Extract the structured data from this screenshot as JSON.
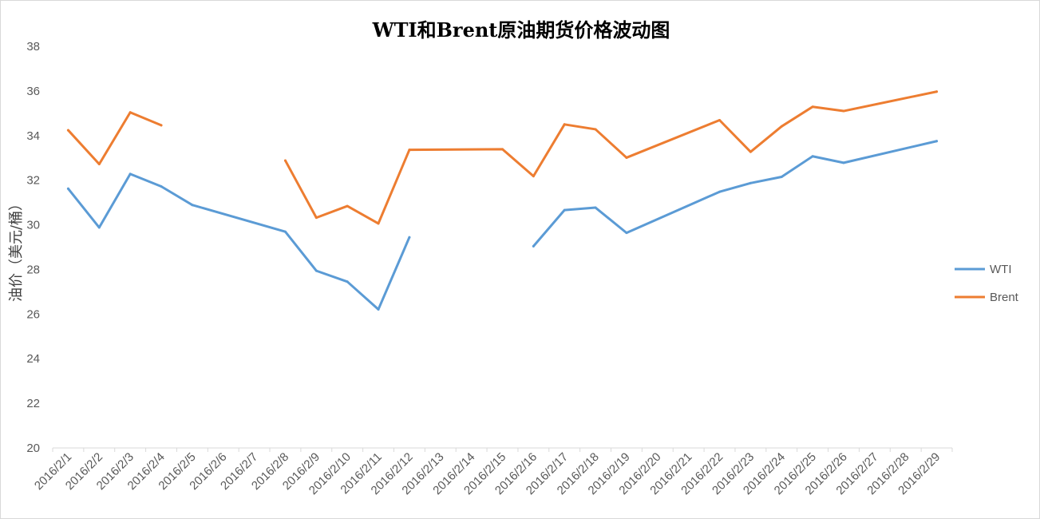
{
  "chart_data": {
    "type": "line",
    "title": "WTI和Brent原油期货价格波动图",
    "xlabel": "",
    "ylabel": "油价（美元/桶）",
    "ylim": [
      20,
      38
    ],
    "yticks": [
      20,
      22,
      24,
      26,
      28,
      30,
      32,
      34,
      36,
      38
    ],
    "grid": false,
    "legend": "right",
    "categories": [
      "2016/2/1",
      "2016/2/2",
      "2016/2/3",
      "2016/2/4",
      "2016/2/5",
      "2016/2/6",
      "2016/2/7",
      "2016/2/8",
      "2016/2/9",
      "2016/2/10",
      "2016/2/11",
      "2016/2/12",
      "2016/2/13",
      "2016/2/14",
      "2016/2/15",
      "2016/2/16",
      "2016/2/17",
      "2016/2/18",
      "2016/2/19",
      "2016/2/20",
      "2016/2/21",
      "2016/2/22",
      "2016/2/23",
      "2016/2/24",
      "2016/2/25",
      "2016/2/26",
      "2016/2/27",
      "2016/2/28",
      "2016/2/29"
    ],
    "series": [
      {
        "name": "WTI",
        "color": "#5b9bd5",
        "values": [
          31.62,
          29.88,
          32.28,
          31.72,
          30.89,
          null,
          null,
          29.69,
          27.94,
          27.45,
          26.21,
          29.44,
          null,
          null,
          null,
          29.04,
          30.66,
          30.77,
          29.64,
          null,
          null,
          31.48,
          31.87,
          32.15,
          33.07,
          32.78,
          null,
          null,
          33.75
        ]
      },
      {
        "name": "Brent",
        "color": "#ed7d31",
        "values": [
          34.24,
          32.72,
          35.04,
          34.46,
          null,
          null,
          null,
          32.88,
          30.32,
          30.84,
          30.06,
          33.36,
          null,
          null,
          33.39,
          32.18,
          34.5,
          34.28,
          33.01,
          null,
          null,
          34.69,
          33.27,
          34.41,
          35.29,
          35.1,
          null,
          null,
          35.97
        ]
      }
    ]
  }
}
